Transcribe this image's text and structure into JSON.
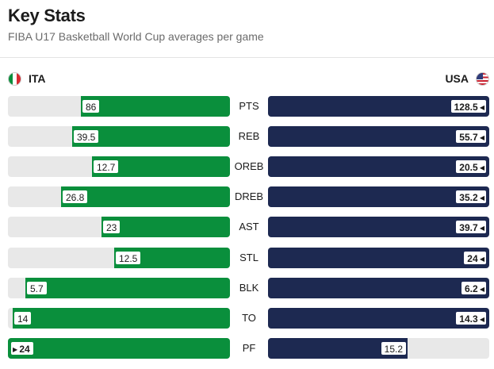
{
  "header": {
    "title": "Key Stats",
    "subtitle": "FIBA U17 Basketball World Cup averages per game"
  },
  "teams": {
    "left": {
      "name": "ITA",
      "flag_icon": "italy-flag-icon"
    },
    "right": {
      "name": "USA",
      "flag_icon": "usa-flag-icon"
    }
  },
  "colors": {
    "ita": "#0a8f3c",
    "usa": "#1d2951",
    "track": "#e8e8e8"
  },
  "stats": [
    {
      "label": "PTS",
      "ita": "86",
      "usa": "128.5",
      "ita_frac": 0.67,
      "usa_frac": 1.0,
      "leader": "usa"
    },
    {
      "label": "REB",
      "ita": "39.5",
      "usa": "55.7",
      "ita_frac": 0.71,
      "usa_frac": 1.0,
      "leader": "usa"
    },
    {
      "label": "OREB",
      "ita": "12.7",
      "usa": "20.5",
      "ita_frac": 0.62,
      "usa_frac": 1.0,
      "leader": "usa"
    },
    {
      "label": "DREB",
      "ita": "26.8",
      "usa": "35.2",
      "ita_frac": 0.76,
      "usa_frac": 1.0,
      "leader": "usa"
    },
    {
      "label": "AST",
      "ita": "23",
      "usa": "39.7",
      "ita_frac": 0.58,
      "usa_frac": 1.0,
      "leader": "usa"
    },
    {
      "label": "STL",
      "ita": "12.5",
      "usa": "24",
      "ita_frac": 0.52,
      "usa_frac": 1.0,
      "leader": "usa"
    },
    {
      "label": "BLK",
      "ita": "5.7",
      "usa": "6.2",
      "ita_frac": 0.92,
      "usa_frac": 1.0,
      "leader": "usa"
    },
    {
      "label": "TO",
      "ita": "14",
      "usa": "14.3",
      "ita_frac": 0.98,
      "usa_frac": 1.0,
      "leader": "usa"
    },
    {
      "label": "PF",
      "ita": "24",
      "usa": "15.2",
      "ita_frac": 1.0,
      "usa_frac": 0.63,
      "leader": "ita"
    }
  ]
}
